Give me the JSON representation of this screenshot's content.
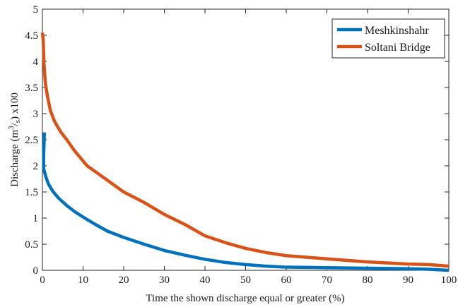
{
  "chart_data": {
    "type": "line",
    "xlabel": "Time the shown discharge equal or greater (%)",
    "ylabel_parts": [
      "Discharge (m",
      "3",
      "/",
      "s",
      ") x100"
    ],
    "xlim": [
      0,
      100
    ],
    "ylim": [
      0,
      5
    ],
    "x_ticks": [
      0,
      10,
      20,
      30,
      40,
      50,
      60,
      70,
      80,
      90,
      100
    ],
    "x_tick_labels": [
      "0",
      "10",
      "20",
      "30",
      "40",
      "50",
      "60",
      "70",
      "80",
      "90",
      "100"
    ],
    "y_ticks": [
      0,
      0.5,
      1,
      1.5,
      2,
      2.5,
      3,
      3.5,
      4,
      4.5,
      5
    ],
    "y_tick_labels": [
      "0",
      "0.5",
      "1",
      "1.5",
      "2",
      "2.5",
      "3",
      "3.5",
      "4",
      "4.5",
      "5"
    ],
    "grid": false,
    "legend_position": "top-right",
    "series": [
      {
        "name": "Meshkinshahr",
        "color": "#0072BD",
        "x": [
          0.5,
          0.3,
          0.3,
          0.8,
          1.5,
          2.5,
          4,
          6,
          8,
          10,
          13,
          16,
          20,
          25,
          30,
          35,
          40,
          45,
          50,
          55,
          60,
          70,
          80,
          90,
          95,
          100
        ],
        "y": [
          2.64,
          2.2,
          1.95,
          1.8,
          1.65,
          1.52,
          1.38,
          1.24,
          1.12,
          1.02,
          0.88,
          0.75,
          0.63,
          0.5,
          0.38,
          0.29,
          0.21,
          0.15,
          0.11,
          0.08,
          0.06,
          0.05,
          0.04,
          0.03,
          0.02,
          0.0
        ]
      },
      {
        "name": "Soltani Bridge",
        "color": "#D95319",
        "x": [
          0,
          0.2,
          0.4,
          0.7,
          1.2,
          2,
          3,
          4.5,
          6,
          8,
          11,
          15,
          20,
          25,
          30,
          35,
          40,
          45,
          50,
          55,
          60,
          70,
          80,
          90,
          95,
          100
        ],
        "y": [
          4.55,
          4.4,
          3.95,
          3.6,
          3.35,
          3.05,
          2.85,
          2.65,
          2.5,
          2.28,
          2.0,
          1.78,
          1.5,
          1.3,
          1.07,
          0.88,
          0.66,
          0.53,
          0.42,
          0.34,
          0.28,
          0.22,
          0.16,
          0.12,
          0.11,
          0.08
        ]
      }
    ]
  }
}
